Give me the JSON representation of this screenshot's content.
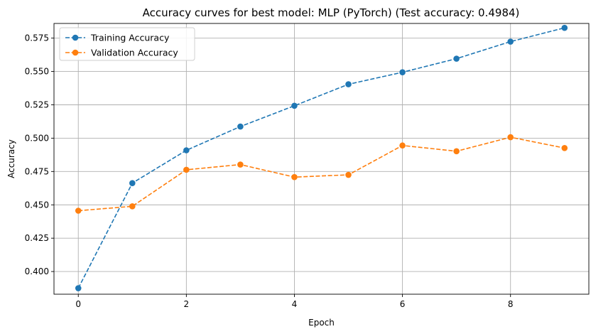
{
  "chart_data": {
    "type": "line",
    "title": "Accuracy curves for best model: MLP (PyTorch) (Test accuracy: 0.4984)",
    "xlabel": "Epoch",
    "ylabel": "Accuracy",
    "xlim": [
      -0.45,
      9.45
    ],
    "ylim": [
      0.383,
      0.586
    ],
    "xticks": [
      0,
      2,
      4,
      6,
      8
    ],
    "yticks": [
      0.4,
      0.425,
      0.45,
      0.475,
      0.5,
      0.525,
      0.55,
      0.575
    ],
    "ytick_labels": [
      "0.400",
      "0.425",
      "0.450",
      "0.475",
      "0.500",
      "0.525",
      "0.550",
      "0.575"
    ],
    "grid": true,
    "legend_position": "top-left",
    "x": [
      0,
      1,
      2,
      3,
      4,
      5,
      6,
      7,
      8,
      9
    ],
    "series": [
      {
        "name": "Training Accuracy",
        "color": "#1f77b4",
        "style": "dashed",
        "marker": "circle",
        "values": [
          0.3875,
          0.4663,
          0.4909,
          0.5087,
          0.5243,
          0.5404,
          0.5494,
          0.5596,
          0.5724,
          0.5827
        ]
      },
      {
        "name": "Validation Accuracy",
        "color": "#ff7f0e",
        "style": "dashed",
        "marker": "circle",
        "values": [
          0.4456,
          0.4489,
          0.4763,
          0.4802,
          0.4708,
          0.4725,
          0.4945,
          0.4902,
          0.5007,
          0.4926
        ]
      }
    ]
  }
}
